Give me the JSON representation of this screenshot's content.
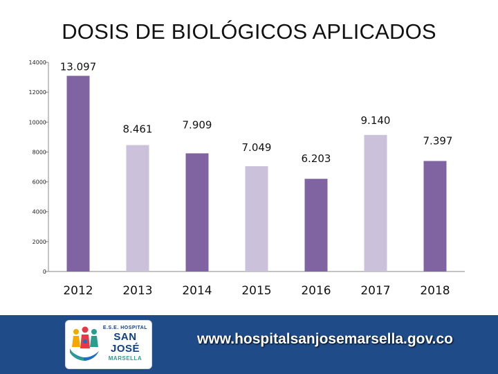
{
  "page": {
    "title": "DOSIS DE BIOLÓGICOS APLICADOS"
  },
  "chart_data": {
    "type": "bar",
    "title": "DOSIS DE BIOLÓGICOS APLICADOS",
    "categories": [
      "2012",
      "2013",
      "2014",
      "2015",
      "2016",
      "2017",
      "2018"
    ],
    "values": [
      13097,
      8461,
      7909,
      7049,
      6203,
      9140,
      7397
    ],
    "value_labels": [
      "13.097",
      "8.461",
      "7.909",
      "7.049",
      "6.203",
      "9.140",
      "7.397"
    ],
    "ylim": [
      0,
      14000
    ],
    "yticks": [
      "0",
      "2000",
      "4000",
      "6000",
      "8000",
      "10000",
      "12000",
      "14000"
    ],
    "xlabel": "",
    "ylabel": "",
    "grid": false,
    "colors": [
      "#8064a2",
      "#ccc1da",
      "#8064a2",
      "#ccc1da",
      "#8064a2",
      "#ccc1da",
      "#8064a2"
    ]
  },
  "footer": {
    "url": "www.hospitalsanjosemarsella.gov.co",
    "background": "#1f4c89",
    "logo": {
      "line1": "E.S.E. HOSPITAL",
      "line2": "SAN JOSÉ",
      "line3": "MARSELLA",
      "icon": "family-hands-icon"
    }
  }
}
